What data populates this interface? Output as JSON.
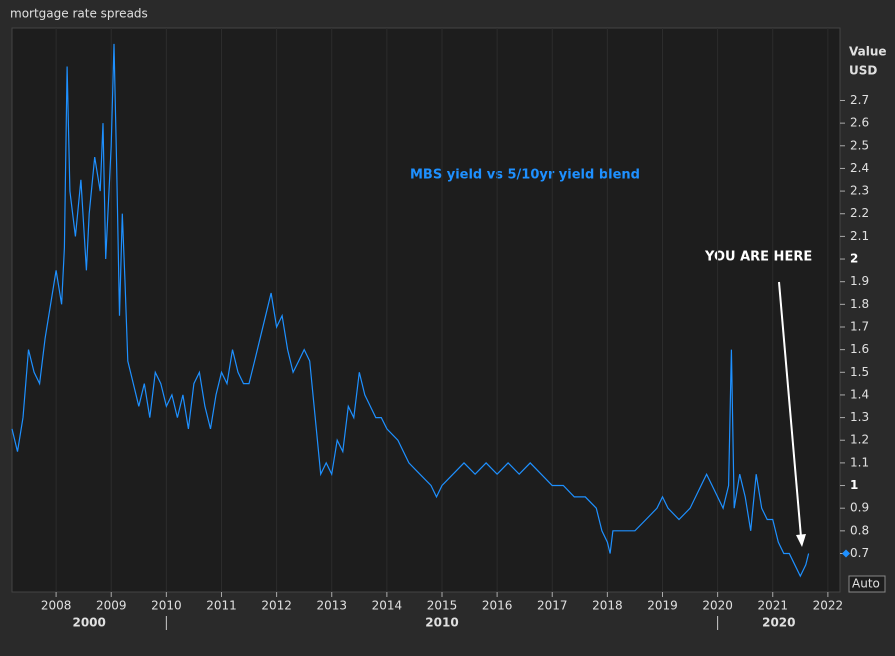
{
  "chart_data": {
    "type": "line",
    "title": "mortgage rate spreads",
    "annotations": [
      "MBS yield vs 5/10yr yield blend",
      "YOU ARE HERE"
    ],
    "y_label": [
      "Value",
      "USD"
    ],
    "scale_button": "Auto",
    "decade_labels": [
      "2000",
      "2010",
      "2020"
    ],
    "color": "#1e90ff",
    "x": [
      2007.2,
      2007.3,
      2007.4,
      2007.5,
      2007.6,
      2007.7,
      2007.8,
      2007.9,
      2008.0,
      2008.1,
      2008.15,
      2008.2,
      2008.25,
      2008.35,
      2008.45,
      2008.55,
      2008.6,
      2008.7,
      2008.8,
      2008.85,
      2008.9,
      2009.0,
      2009.05,
      2009.1,
      2009.15,
      2009.2,
      2009.25,
      2009.3,
      2009.4,
      2009.5,
      2009.6,
      2009.7,
      2009.8,
      2009.9,
      2010.0,
      2010.1,
      2010.2,
      2010.3,
      2010.4,
      2010.5,
      2010.6,
      2010.7,
      2010.8,
      2010.9,
      2011.0,
      2011.1,
      2011.2,
      2011.3,
      2011.4,
      2011.5,
      2011.6,
      2011.7,
      2011.8,
      2011.9,
      2012.0,
      2012.1,
      2012.2,
      2012.3,
      2012.4,
      2012.5,
      2012.6,
      2012.7,
      2012.8,
      2012.9,
      2013.0,
      2013.1,
      2013.2,
      2013.3,
      2013.4,
      2013.5,
      2013.6,
      2013.7,
      2013.8,
      2013.9,
      2014.0,
      2014.2,
      2014.4,
      2014.6,
      2014.8,
      2014.9,
      2015.0,
      2015.2,
      2015.4,
      2015.6,
      2015.8,
      2016.0,
      2016.2,
      2016.4,
      2016.6,
      2016.8,
      2017.0,
      2017.2,
      2017.4,
      2017.6,
      2017.8,
      2017.9,
      2018.0,
      2018.05,
      2018.1,
      2018.3,
      2018.5,
      2018.7,
      2018.9,
      2019.0,
      2019.1,
      2019.3,
      2019.5,
      2019.7,
      2019.8,
      2019.9,
      2020.0,
      2020.1,
      2020.2,
      2020.25,
      2020.3,
      2020.4,
      2020.5,
      2020.6,
      2020.7,
      2020.8,
      2020.9,
      2021.0,
      2021.1,
      2021.2,
      2021.3,
      2021.4,
      2021.5,
      2021.6,
      2021.65
    ],
    "values": [
      1.25,
      1.15,
      1.3,
      1.6,
      1.5,
      1.45,
      1.65,
      1.8,
      1.95,
      1.8,
      2.05,
      2.85,
      2.3,
      2.1,
      2.35,
      1.95,
      2.2,
      2.45,
      2.3,
      2.6,
      2.0,
      2.5,
      2.95,
      2.4,
      1.75,
      2.2,
      1.9,
      1.55,
      1.45,
      1.35,
      1.45,
      1.3,
      1.5,
      1.45,
      1.35,
      1.4,
      1.3,
      1.4,
      1.25,
      1.45,
      1.5,
      1.35,
      1.25,
      1.4,
      1.5,
      1.45,
      1.6,
      1.5,
      1.45,
      1.45,
      1.55,
      1.65,
      1.75,
      1.85,
      1.7,
      1.75,
      1.6,
      1.5,
      1.55,
      1.6,
      1.55,
      1.3,
      1.05,
      1.1,
      1.05,
      1.2,
      1.15,
      1.35,
      1.3,
      1.5,
      1.4,
      1.35,
      1.3,
      1.3,
      1.25,
      1.2,
      1.1,
      1.05,
      1.0,
      0.95,
      1.0,
      1.05,
      1.1,
      1.05,
      1.1,
      1.05,
      1.1,
      1.05,
      1.1,
      1.05,
      1.0,
      1.0,
      0.95,
      0.95,
      0.9,
      0.8,
      0.75,
      0.7,
      0.8,
      0.8,
      0.8,
      0.85,
      0.9,
      0.95,
      0.9,
      0.85,
      0.9,
      1.0,
      1.05,
      1.0,
      0.95,
      0.9,
      1.0,
      1.6,
      0.9,
      1.05,
      0.95,
      0.8,
      1.05,
      0.9,
      0.85,
      0.85,
      0.75,
      0.7,
      0.7,
      0.65,
      0.6,
      0.65,
      0.7
    ],
    "xlim": [
      2007.2,
      2022.22
    ],
    "xticks": [
      2008,
      2009,
      2010,
      2011,
      2012,
      2013,
      2014,
      2015,
      2016,
      2017,
      2018,
      2019,
      2020,
      2021,
      2022
    ],
    "ylim": [
      0.53,
      3.02
    ],
    "yticks": [
      0.7,
      0.8,
      0.9,
      1,
      1.1,
      1.2,
      1.3,
      1.4,
      1.5,
      1.6,
      1.7,
      1.8,
      1.9,
      2,
      2.1,
      2.2,
      2.3,
      2.4,
      2.5,
      2.6,
      2.7
    ],
    "grid": true
  }
}
